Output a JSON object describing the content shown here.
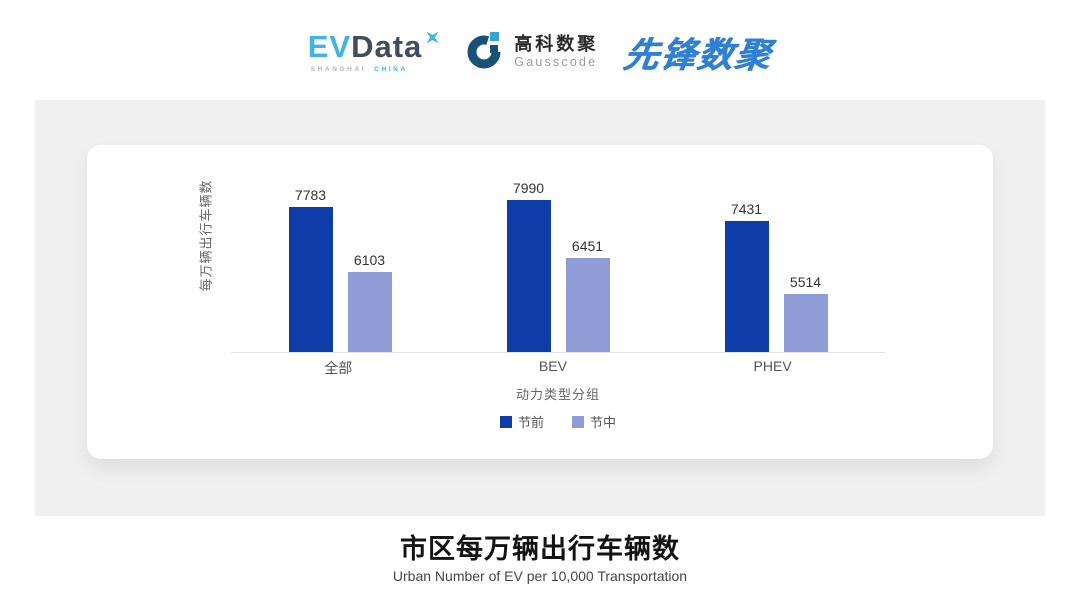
{
  "header": {
    "evdata_logo": {
      "ev": "EV",
      "data": "Data",
      "sub_left": "SHANGHAI",
      "sub_right": "CHINA"
    },
    "gausscode_logo": {
      "cn_name": "高科数聚",
      "en_name": "Gausscode"
    },
    "pioneer_logo": {
      "text": "先锋数聚"
    }
  },
  "chart_data": {
    "type": "bar",
    "title": "市区每万辆出行车辆数",
    "subtitle": "Urban Number of EV per 10,000 Transportation",
    "categories": [
      "全部",
      "BEV",
      "PHEV"
    ],
    "series": [
      {
        "name": "节前",
        "color": "#0e3ca8",
        "values": [
          7783,
          7990,
          7431
        ]
      },
      {
        "name": "节中",
        "color": "#8f9cd5",
        "values": [
          6103,
          6451,
          5514
        ]
      }
    ],
    "xlabel": "动力类型分组",
    "ylabel": "每万辆出行车辆数",
    "ylim": [
      4000,
      8500
    ],
    "grid": false,
    "legend_position": "bottom",
    "data_labels": true
  },
  "footer": {
    "title": "市区每万辆出行车辆数",
    "subtitle": "Urban Number of EV per 10,000 Transportation"
  },
  "colors": {
    "series_pre": "#0e3ca8",
    "series_mid": "#8f9cd5",
    "panel_bg": "#f0f0f1",
    "card_bg": "#ffffff",
    "axis_line": "#e2e2e5",
    "evdata_blue": "#3fb4e6",
    "evdata_dark": "#414d5e",
    "gauss_dark": "#1a5276",
    "gauss_light": "#36a4d2",
    "pioneer_blue": "#2f7fd2"
  }
}
